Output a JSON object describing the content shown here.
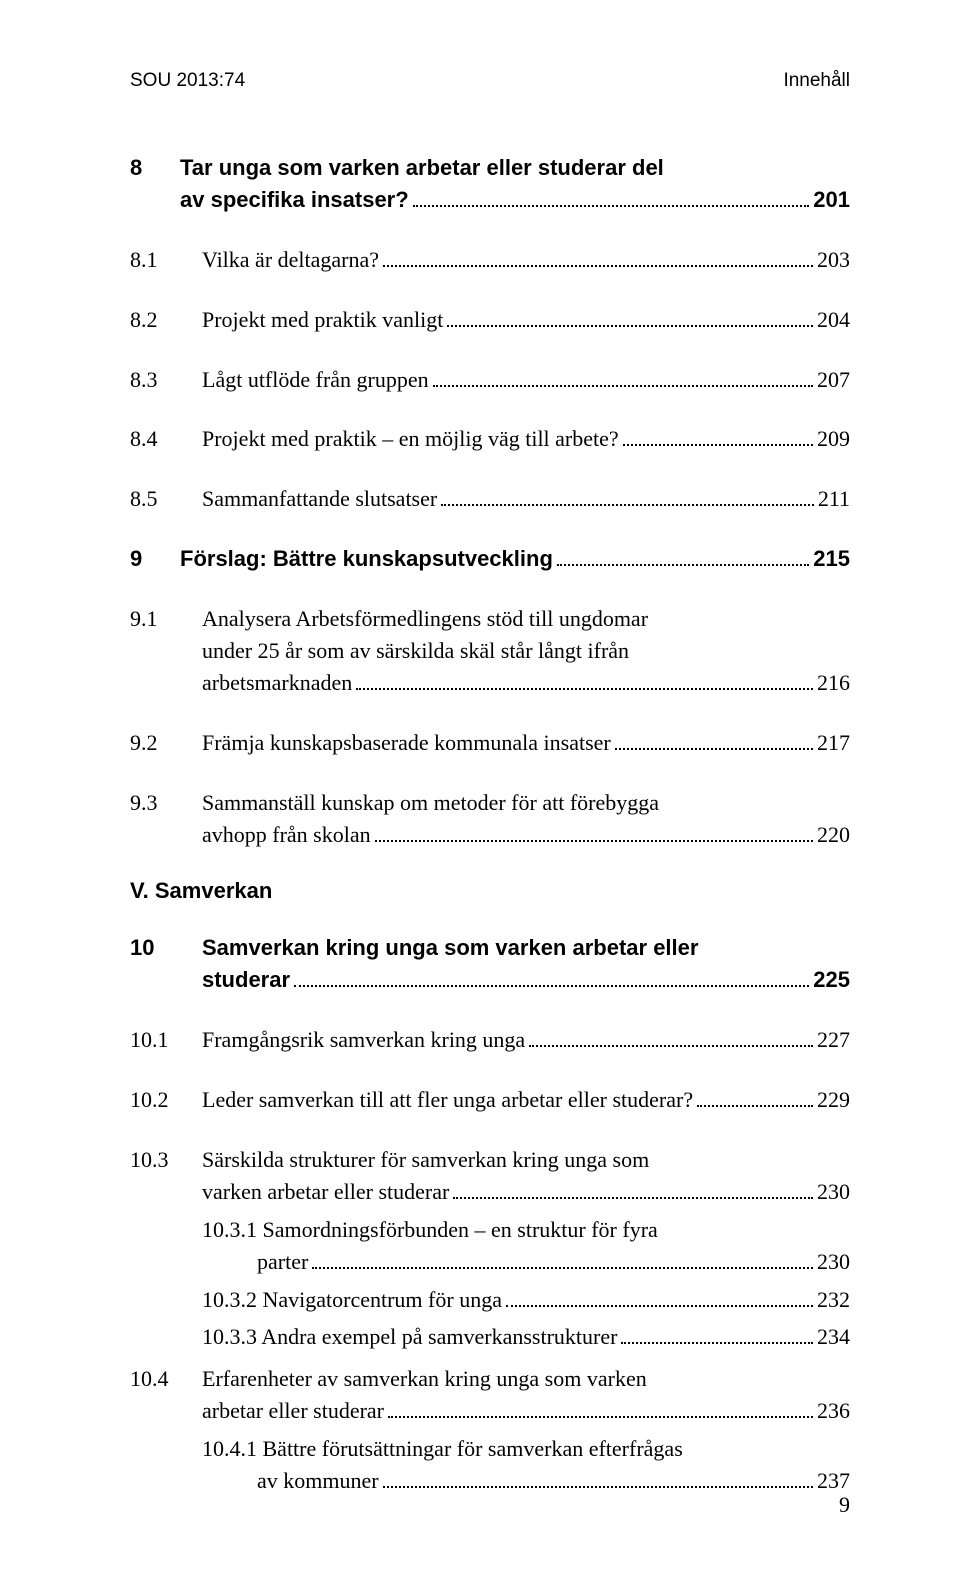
{
  "header": {
    "left": "SOU 2013:74",
    "right": "Innehåll"
  },
  "entries": [
    {
      "type": "group-start"
    },
    {
      "type": "row",
      "num": "8",
      "numClass": "w1",
      "bold": true,
      "lines": [
        "Tar unga som varken arbetar eller studerar del",
        "av specifika insatser?"
      ],
      "page": "201"
    },
    {
      "type": "group-end"
    },
    {
      "type": "group-start"
    },
    {
      "type": "row",
      "num": "8.1",
      "numClass": "w2",
      "lines": [
        "Vilka är deltagarna?"
      ],
      "page": "203"
    },
    {
      "type": "group-end"
    },
    {
      "type": "group-start"
    },
    {
      "type": "row",
      "num": "8.2",
      "numClass": "w2",
      "lines": [
        "Projekt med praktik vanligt"
      ],
      "page": "204"
    },
    {
      "type": "group-end"
    },
    {
      "type": "group-start"
    },
    {
      "type": "row",
      "num": "8.3",
      "numClass": "w2",
      "lines": [
        "Lågt utflöde från gruppen"
      ],
      "page": "207"
    },
    {
      "type": "group-end"
    },
    {
      "type": "group-start"
    },
    {
      "type": "row",
      "num": "8.4",
      "numClass": "w2",
      "lines": [
        "Projekt med praktik – en möjlig väg till arbete?"
      ],
      "page": "209"
    },
    {
      "type": "group-end"
    },
    {
      "type": "group-start"
    },
    {
      "type": "row",
      "num": "8.5",
      "numClass": "w2",
      "lines": [
        "Sammanfattande slutsatser"
      ],
      "page": "211"
    },
    {
      "type": "group-end"
    },
    {
      "type": "group-start"
    },
    {
      "type": "row",
      "num": "9",
      "numClass": "w1",
      "bold": true,
      "lines": [
        "Förslag: Bättre kunskapsutveckling"
      ],
      "page": "215"
    },
    {
      "type": "group-end"
    },
    {
      "type": "group-start"
    },
    {
      "type": "row",
      "num": "9.1",
      "numClass": "w2",
      "lines": [
        "Analysera Arbetsförmedlingens stöd till ungdomar",
        "under 25 år som av särskilda skäl står långt ifrån",
        "arbetsmarknaden"
      ],
      "page": "216"
    },
    {
      "type": "group-end"
    },
    {
      "type": "group-start"
    },
    {
      "type": "row",
      "num": "9.2",
      "numClass": "w2",
      "lines": [
        "Främja kunskapsbaserade kommunala insatser"
      ],
      "page": "217"
    },
    {
      "type": "group-end"
    },
    {
      "type": "group-start"
    },
    {
      "type": "row",
      "num": "9.3",
      "numClass": "w2",
      "lines": [
        "Sammanställ kunskap om metoder för att förebygga",
        "avhopp från skolan"
      ],
      "page": "220"
    },
    {
      "type": "group-end"
    },
    {
      "type": "heading",
      "text": "V. Samverkan"
    },
    {
      "type": "group-start"
    },
    {
      "type": "row",
      "num": "10",
      "numClass": "w2",
      "bold": true,
      "lines": [
        "Samverkan kring unga som varken arbetar eller",
        "studerar"
      ],
      "page": "225"
    },
    {
      "type": "group-end"
    },
    {
      "type": "group-start"
    },
    {
      "type": "row",
      "num": "10.1",
      "numClass": "w3",
      "lines": [
        "Framgångsrik samverkan kring unga"
      ],
      "page": "227"
    },
    {
      "type": "group-end"
    },
    {
      "type": "group-start"
    },
    {
      "type": "row",
      "num": "10.2",
      "numClass": "w3",
      "lines": [
        "Leder samverkan till att fler unga arbetar eller studerar?"
      ],
      "page": "229"
    },
    {
      "type": "group-end"
    },
    {
      "type": "group-start",
      "tight": true
    },
    {
      "type": "row",
      "num": "10.3",
      "numClass": "w3",
      "lines": [
        "Särskilda strukturer för samverkan kring unga som",
        "varken arbetar eller studerar"
      ],
      "page": "230"
    },
    {
      "type": "subrow",
      "lines": [
        "10.3.1 Samordningsförbunden – en struktur för fyra",
        "          parter"
      ],
      "page": "230"
    },
    {
      "type": "subrow",
      "lines": [
        "10.3.2 Navigatorcentrum för unga"
      ],
      "page": "232"
    },
    {
      "type": "subrow",
      "lines": [
        "10.3.3 Andra exempel på samverkansstrukturer"
      ],
      "page": "234"
    },
    {
      "type": "group-end"
    },
    {
      "type": "group-start",
      "tight": true
    },
    {
      "type": "row",
      "num": "10.4",
      "numClass": "w3",
      "lines": [
        "Erfarenheter av samverkan kring unga som varken",
        "arbetar eller studerar"
      ],
      "page": "236"
    },
    {
      "type": "subrow",
      "lines": [
        "10.4.1 Bättre förutsättningar för samverkan efterfrågas",
        "          av kommuner"
      ],
      "page": "237"
    },
    {
      "type": "group-end"
    }
  ],
  "pageNumber": "9"
}
